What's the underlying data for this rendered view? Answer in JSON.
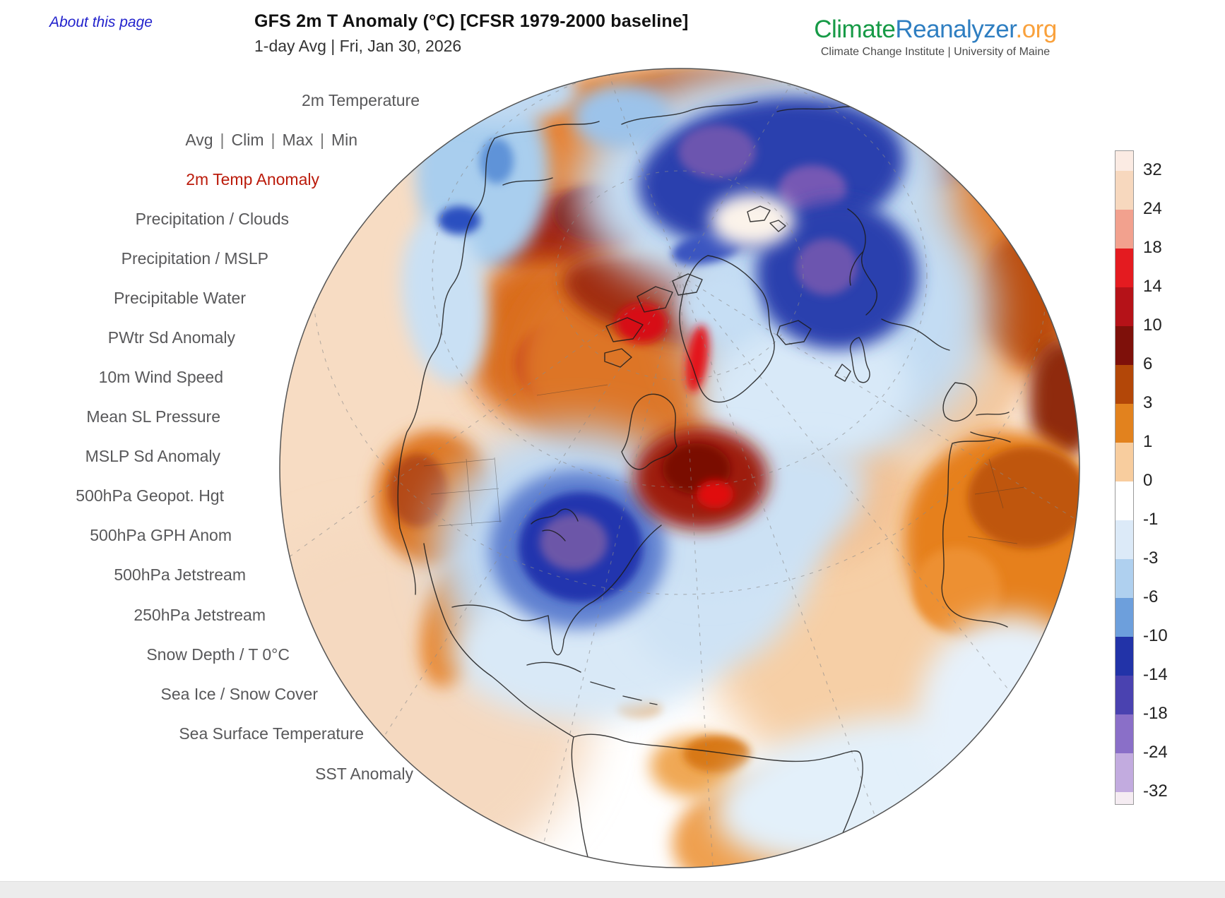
{
  "header": {
    "about_link": "About this page",
    "title": "GFS 2m T Anomaly (°C) [CFSR 1979-2000 baseline]",
    "subtitle": "1-day Avg | Fri, Jan 30, 2026"
  },
  "logo": {
    "climate": "Climate",
    "reanalyzer": "Reanalyzer",
    "org": ".org",
    "tagline": "Climate Change Institute | University of Maine",
    "colors": {
      "climate": "#169A46",
      "reanalyzer": "#2E7EC1",
      "org": "#F9A13C"
    }
  },
  "menu": {
    "active_color": "#BB1B0B",
    "items": [
      {
        "label": "2m Temperature"
      },
      {
        "group": [
          "Avg",
          "Clim",
          "Max",
          "Min"
        ],
        "separator": "|"
      },
      {
        "label": "2m Temp Anomaly",
        "active": true
      },
      {
        "label": "Precipitation / Clouds"
      },
      {
        "label": "Precipitation / MSLP"
      },
      {
        "label": "Precipitable Water"
      },
      {
        "label": "PWtr Sd Anomaly"
      },
      {
        "label": "10m Wind Speed"
      },
      {
        "label": "Mean SL Pressure"
      },
      {
        "label": "MSLP Sd Anomaly"
      },
      {
        "label": "500hPa Geopot. Hgt"
      },
      {
        "label": "500hPa GPH Anom"
      },
      {
        "label": "500hPa Jetstream"
      },
      {
        "label": "250hPa Jetstream"
      },
      {
        "label": "Snow Depth / T 0°C"
      },
      {
        "label": "Sea Ice / Snow Cover"
      },
      {
        "label": "Sea Surface Temperature"
      },
      {
        "label": "SST Anomaly"
      }
    ]
  },
  "colorbar": {
    "units": "°C",
    "ticks": [
      "32",
      "24",
      "18",
      "14",
      "10",
      "6",
      "3",
      "1",
      "0",
      "-1",
      "-3",
      "-6",
      "-10",
      "-14",
      "-18",
      "-24",
      "-32"
    ],
    "segments": [
      "#FBEBE3",
      "#F7D8BE",
      "#F2A18E",
      "#E41B20",
      "#B51218",
      "#7E100A",
      "#B34708",
      "#E2821E",
      "#F8CD9E",
      "#FFFFFF",
      "#DCEAF8",
      "#AFD0EF",
      "#6D9FDC",
      "#2233A8",
      "#4A42B0",
      "#8A6FC8",
      "#C2ABDF",
      "#F5ECF2"
    ]
  }
}
